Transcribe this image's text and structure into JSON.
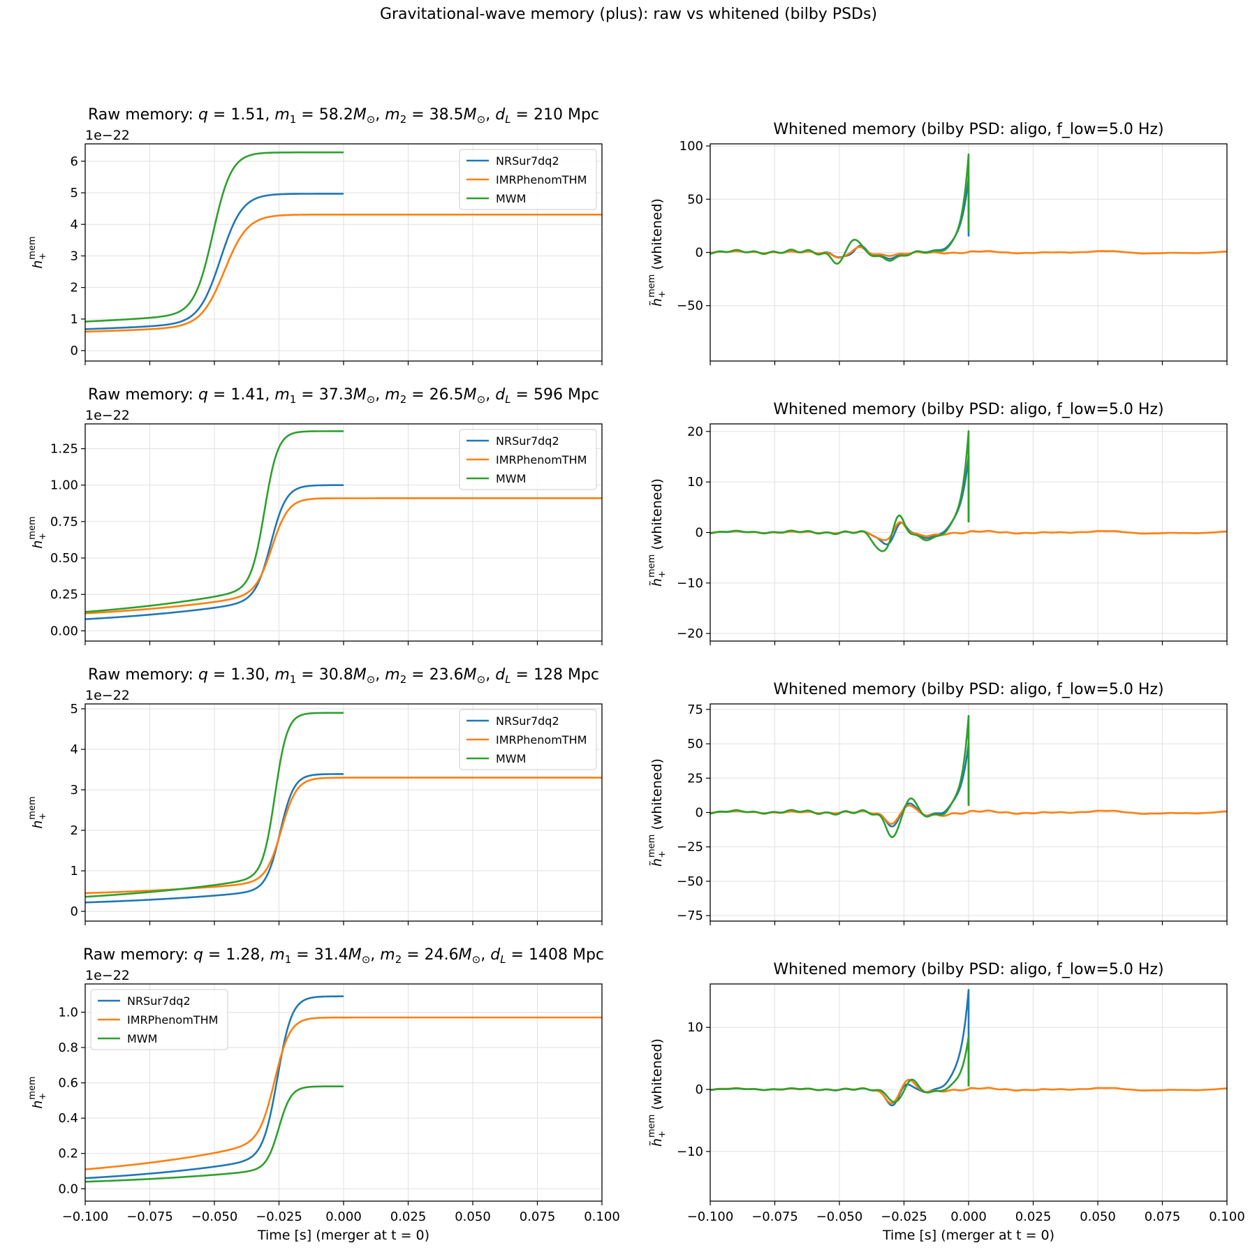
{
  "suptitle": "Gravitational-wave memory (plus): raw vs whitened (bilby PSDs)",
  "colors": {
    "nr": "#1f77b4",
    "imr": "#ff7f0e",
    "mwm": "#2ca02c",
    "grid": "#e0e0e0",
    "axis": "#000000"
  },
  "legend_labels": [
    "NRSur7dq2",
    "IMRPhenomTHM",
    "MWM"
  ],
  "legend_color_keys": [
    "nr",
    "imr",
    "mwm"
  ],
  "chart_data": [
    {
      "type": "line",
      "panel": "raw",
      "title_prefix": "Raw memory:",
      "params": {
        "q": "1.51",
        "m1": "58.2",
        "m2": "38.5",
        "dL": "210"
      },
      "ylabel": "h_+^mem",
      "offset_label": "1e−22",
      "ylim": [
        -0.33,
        6.55
      ],
      "yticks": [
        0,
        1,
        2,
        3,
        4,
        5,
        6
      ],
      "ytick_labels": [
        "0",
        "1",
        "2",
        "3",
        "4",
        "5",
        "6"
      ],
      "xlim": [
        -0.1,
        0.1
      ],
      "legend": "upper right",
      "series": [
        {
          "name": "NRSur7dq2",
          "color_key": "nr",
          "model": "step",
          "y0": 0.68,
          "yf": 4.97,
          "tc": -0.0475,
          "w": 0.0042,
          "a": 0.2,
          "b": 0.07,
          "tend": 0.0
        },
        {
          "name": "IMRPhenomTHM",
          "color_key": "imr",
          "model": "step",
          "y0": 0.6,
          "yf": 4.31,
          "tc": -0.046,
          "w": 0.0045,
          "a": 0.17,
          "b": 0.07,
          "tend": 0.1
        },
        {
          "name": "MWM",
          "color_key": "mwm",
          "model": "step",
          "y0": 0.92,
          "yf": 6.28,
          "tc": -0.0505,
          "w": 0.0036,
          "a": 0.29,
          "b": 0.075,
          "tend": 0.0
        }
      ]
    },
    {
      "type": "line",
      "panel": "whitened",
      "title": "Whitened memory (bilby PSD: aligo, f_low=5.0 Hz)",
      "ylabel": "h̃_+^mem (whitened)",
      "ylim": [
        -102,
        102
      ],
      "yticks": [
        -50,
        0,
        50,
        100
      ],
      "ytick_labels": [
        "−50",
        "0",
        "50",
        "100"
      ],
      "xlim": [
        -0.1,
        0.1
      ],
      "series": [
        {
          "name": "NRSur7dq2",
          "color_key": "nr",
          "model": "whiten",
          "tc": -0.0475,
          "dip_t": -0.048,
          "dip": -5,
          "bump_t": -0.0425,
          "bump": 6,
          "trough_t": -0.031,
          "trough": -4,
          "ramp": 70,
          "ramp_tau": 0.0035,
          "tail": 15,
          "ripple": 1.2,
          "tend": 0.0
        },
        {
          "name": "IMRPhenomTHM",
          "color_key": "imr",
          "model": "whiten",
          "tc": -0.046,
          "dip_t": -0.049,
          "dip": -5,
          "bump_t": -0.043,
          "bump": 5,
          "trough_t": -0.032,
          "trough": -2,
          "ramp": 0,
          "ramp_tau": 0.004,
          "tail": 0,
          "ripple": 0.8,
          "tend": 0.1
        },
        {
          "name": "MWM",
          "color_key": "mwm",
          "model": "whiten",
          "tc": -0.0505,
          "dip_t": -0.05,
          "dip": -9,
          "bump_t": -0.0445,
          "bump": 14,
          "trough_t": -0.031,
          "trough": -5,
          "ramp": 92,
          "ramp_tau": 0.003,
          "tail": 20,
          "ripple": 1.8,
          "tend": 0.0
        }
      ]
    },
    {
      "type": "line",
      "panel": "raw",
      "title_prefix": "Raw memory:",
      "params": {
        "q": "1.41",
        "m1": "37.3",
        "m2": "26.5",
        "dL": "596"
      },
      "ylabel": "h_+^mem",
      "offset_label": "1e−22",
      "ylim": [
        -0.07,
        1.42
      ],
      "yticks": [
        0,
        0.25,
        0.5,
        0.75,
        1.0,
        1.25
      ],
      "ytick_labels": [
        "0.00",
        "0.25",
        "0.50",
        "0.75",
        "1.00",
        "1.25"
      ],
      "xlim": [
        -0.1,
        0.1
      ],
      "legend": "upper right",
      "series": [
        {
          "name": "NRSur7dq2",
          "color_key": "nr",
          "model": "step",
          "y0": 0.08,
          "yf": 1.0,
          "tc": -0.028,
          "w": 0.003,
          "a": 0.06,
          "b": 0.06,
          "tend": 0.0
        },
        {
          "name": "IMRPhenomTHM",
          "color_key": "imr",
          "model": "step",
          "y0": 0.12,
          "yf": 0.91,
          "tc": -0.0275,
          "w": 0.0032,
          "a": 0.06,
          "b": 0.06,
          "tend": 0.1
        },
        {
          "name": "MWM",
          "color_key": "mwm",
          "model": "step",
          "y0": 0.13,
          "yf": 1.37,
          "tc": -0.0305,
          "w": 0.0026,
          "a": 0.09,
          "b": 0.065,
          "tend": 0.0
        }
      ]
    },
    {
      "type": "line",
      "panel": "whitened",
      "title": "Whitened memory (bilby PSD: aligo, f_low=5.0 Hz)",
      "ylabel": "h̃_+^mem (whitened)",
      "ylim": [
        -21.5,
        21.5
      ],
      "yticks": [
        -20,
        -10,
        0,
        10,
        20
      ],
      "ytick_labels": [
        "−20",
        "−10",
        "0",
        "10",
        "20"
      ],
      "xlim": [
        -0.1,
        0.1
      ],
      "series": [
        {
          "name": "NRSur7dq2",
          "color_key": "nr",
          "model": "whiten",
          "tc": -0.028,
          "dip_t": -0.032,
          "dip": -2.2,
          "bump_t": -0.026,
          "bump": 2.2,
          "trough_t": -0.015,
          "trough": -1.2,
          "ramp": 15,
          "ramp_tau": 0.0035,
          "tail": 2,
          "ripple": 0.2,
          "tend": 0.0
        },
        {
          "name": "IMRPhenomTHM",
          "color_key": "imr",
          "model": "whiten",
          "tc": -0.0275,
          "dip_t": -0.033,
          "dip": -1.5,
          "bump_t": -0.0265,
          "bump": 2.2,
          "trough_t": -0.016,
          "trough": -0.6,
          "ramp": 0,
          "ramp_tau": 0.004,
          "tail": 0,
          "ripple": 0.18,
          "tend": 0.1
        },
        {
          "name": "MWM",
          "color_key": "mwm",
          "model": "whiten",
          "tc": -0.0305,
          "dip_t": -0.0335,
          "dip": -3.8,
          "bump_t": -0.027,
          "bump": 3.6,
          "trough_t": -0.0155,
          "trough": -1.5,
          "ramp": 20,
          "ramp_tau": 0.003,
          "tail": 2,
          "ripple": 0.3,
          "tend": 0.0
        }
      ]
    },
    {
      "type": "line",
      "panel": "raw",
      "title_prefix": "Raw memory:",
      "params": {
        "q": "1.30",
        "m1": "30.8",
        "m2": "23.6",
        "dL": "128"
      },
      "ylabel": "h_+^mem",
      "offset_label": "1e−22",
      "ylim": [
        -0.24,
        5.12
      ],
      "yticks": [
        0,
        1,
        2,
        3,
        4,
        5
      ],
      "ytick_labels": [
        "0",
        "1",
        "2",
        "3",
        "4",
        "5"
      ],
      "xlim": [
        -0.1,
        0.1
      ],
      "legend": "upper right",
      "series": [
        {
          "name": "NRSur7dq2",
          "color_key": "nr",
          "model": "step",
          "y0": 0.22,
          "yf": 3.39,
          "tc": -0.0245,
          "w": 0.0027,
          "a": 0.13,
          "b": 0.06,
          "tend": 0.0
        },
        {
          "name": "IMRPhenomTHM",
          "color_key": "imr",
          "model": "step",
          "y0": 0.45,
          "yf": 3.3,
          "tc": -0.024,
          "w": 0.003,
          "a": 0.12,
          "b": 0.06,
          "tend": 0.1
        },
        {
          "name": "MWM",
          "color_key": "mwm",
          "model": "step",
          "y0": 0.36,
          "yf": 4.9,
          "tc": -0.0265,
          "w": 0.0024,
          "a": 0.25,
          "b": 0.065,
          "tend": 0.0
        }
      ]
    },
    {
      "type": "line",
      "panel": "whitened",
      "title": "Whitened memory (bilby PSD: aligo, f_low=5.0 Hz)",
      "ylabel": "h̃_+^mem (whitened)",
      "ylim": [
        -79,
        79
      ],
      "yticks": [
        -75,
        -50,
        -25,
        0,
        25,
        50,
        75
      ],
      "ytick_labels": [
        "−75",
        "−50",
        "−25",
        "0",
        "25",
        "50",
        "75"
      ],
      "xlim": [
        -0.1,
        0.1
      ],
      "series": [
        {
          "name": "NRSur7dq2",
          "color_key": "nr",
          "model": "whiten",
          "tc": -0.0245,
          "dip_t": -0.029,
          "dip": -9,
          "bump_t": -0.0235,
          "bump": 9,
          "trough_t": -0.0135,
          "trough": -2.5,
          "ramp": 50,
          "ramp_tau": 0.0035,
          "tail": 5,
          "ripple": 1.0,
          "tend": 0.0
        },
        {
          "name": "IMRPhenomTHM",
          "color_key": "imr",
          "model": "whiten",
          "tc": -0.024,
          "dip_t": -0.0295,
          "dip": -7,
          "bump_t": -0.0235,
          "bump": 7,
          "trough_t": -0.0135,
          "trough": -2,
          "ramp": 0,
          "ramp_tau": 0.004,
          "tail": 0,
          "ripple": 0.8,
          "tend": 0.1
        },
        {
          "name": "MWM",
          "color_key": "mwm",
          "model": "whiten",
          "tc": -0.0265,
          "dip_t": -0.029,
          "dip": -16,
          "bump_t": -0.023,
          "bump": 13,
          "trough_t": -0.0135,
          "trough": -3,
          "ramp": 70,
          "ramp_tau": 0.003,
          "tail": 5,
          "ripple": 1.5,
          "tend": 0.0
        }
      ]
    },
    {
      "type": "line",
      "panel": "raw",
      "title_prefix": "Raw memory:",
      "params": {
        "q": "1.28",
        "m1": "31.4",
        "m2": "24.6",
        "dL": "1408"
      },
      "ylabel": "h_+^mem",
      "offset_label": "1e−22",
      "ylim": [
        -0.07,
        1.16
      ],
      "yticks": [
        0,
        0.2,
        0.4,
        0.6,
        0.8,
        1.0
      ],
      "ytick_labels": [
        "0.0",
        "0.2",
        "0.4",
        "0.6",
        "0.8",
        "1.0"
      ],
      "xlim": [
        -0.1,
        0.1
      ],
      "legend": "upper left",
      "xlabel": "Time [s] (merger at t = 0)",
      "xticks": [
        -0.1,
        -0.075,
        -0.05,
        -0.025,
        0,
        0.025,
        0.05,
        0.075,
        0.1
      ],
      "xtick_labels": [
        "−0.100",
        "−0.075",
        "−0.050",
        "−0.025",
        "0.000",
        "0.025",
        "0.050",
        "0.075",
        "0.100"
      ],
      "series": [
        {
          "name": "NRSur7dq2",
          "color_key": "nr",
          "model": "step",
          "y0": 0.06,
          "yf": 1.09,
          "tc": -0.0255,
          "w": 0.0028,
          "a": 0.05,
          "b": 0.06,
          "tend": 0.0
        },
        {
          "name": "IMRPhenomTHM",
          "color_key": "imr",
          "model": "step",
          "y0": 0.11,
          "yf": 0.97,
          "tc": -0.0265,
          "w": 0.003,
          "a": 0.08,
          "b": 0.065,
          "tend": 0.1
        },
        {
          "name": "MWM",
          "color_key": "mwm",
          "model": "step",
          "y0": 0.04,
          "yf": 0.58,
          "tc": -0.025,
          "w": 0.0024,
          "a": 0.03,
          "b": 0.06,
          "tend": 0.0
        }
      ]
    },
    {
      "type": "line",
      "panel": "whitened",
      "title": "Whitened memory (bilby PSD: aligo, f_low=5.0 Hz)",
      "ylabel": "h̃_+^mem (whitened)",
      "ylim": [
        -18,
        17
      ],
      "yticks": [
        -10,
        0,
        10
      ],
      "ytick_labels": [
        "−10",
        "0",
        "10"
      ],
      "xlim": [
        -0.1,
        0.1
      ],
      "xlabel": "Time [s] (merger at t = 0)",
      "xticks": [
        -0.1,
        -0.075,
        -0.05,
        -0.025,
        0,
        0.025,
        0.05,
        0.075,
        0.1
      ],
      "xtick_labels": [
        "−0.100",
        "−0.075",
        "−0.050",
        "−0.025",
        "0.000",
        "0.025",
        "0.050",
        "0.075",
        "0.100"
      ],
      "series": [
        {
          "name": "NRSur7dq2",
          "color_key": "nr",
          "model": "whiten",
          "tc": -0.0255,
          "dip_t": -0.029,
          "dip": -2.5,
          "bump_t": -0.0245,
          "bump": 1.6,
          "trough_t": -0.0155,
          "trough": -0.5,
          "ramp": 16,
          "ramp_tau": 0.0035,
          "tail": 0.5,
          "ripple": 0.15,
          "tend": 0.0
        },
        {
          "name": "IMRPhenomTHM",
          "color_key": "imr",
          "model": "whiten",
          "tc": -0.0265,
          "dip_t": -0.0295,
          "dip": -2,
          "bump_t": -0.0235,
          "bump": 2,
          "trough_t": -0.015,
          "trough": -0.3,
          "ramp": 0,
          "ramp_tau": 0.004,
          "tail": 0,
          "ripple": 0.15,
          "tend": 0.1
        },
        {
          "name": "MWM",
          "color_key": "mwm",
          "model": "whiten",
          "tc": -0.025,
          "dip_t": -0.028,
          "dip": -2,
          "bump_t": -0.0225,
          "bump": 2,
          "trough_t": -0.0145,
          "trough": -0.5,
          "ramp": 8.5,
          "ramp_tau": 0.003,
          "tail": 0.5,
          "ripple": 0.15,
          "tend": 0.0
        }
      ]
    }
  ]
}
